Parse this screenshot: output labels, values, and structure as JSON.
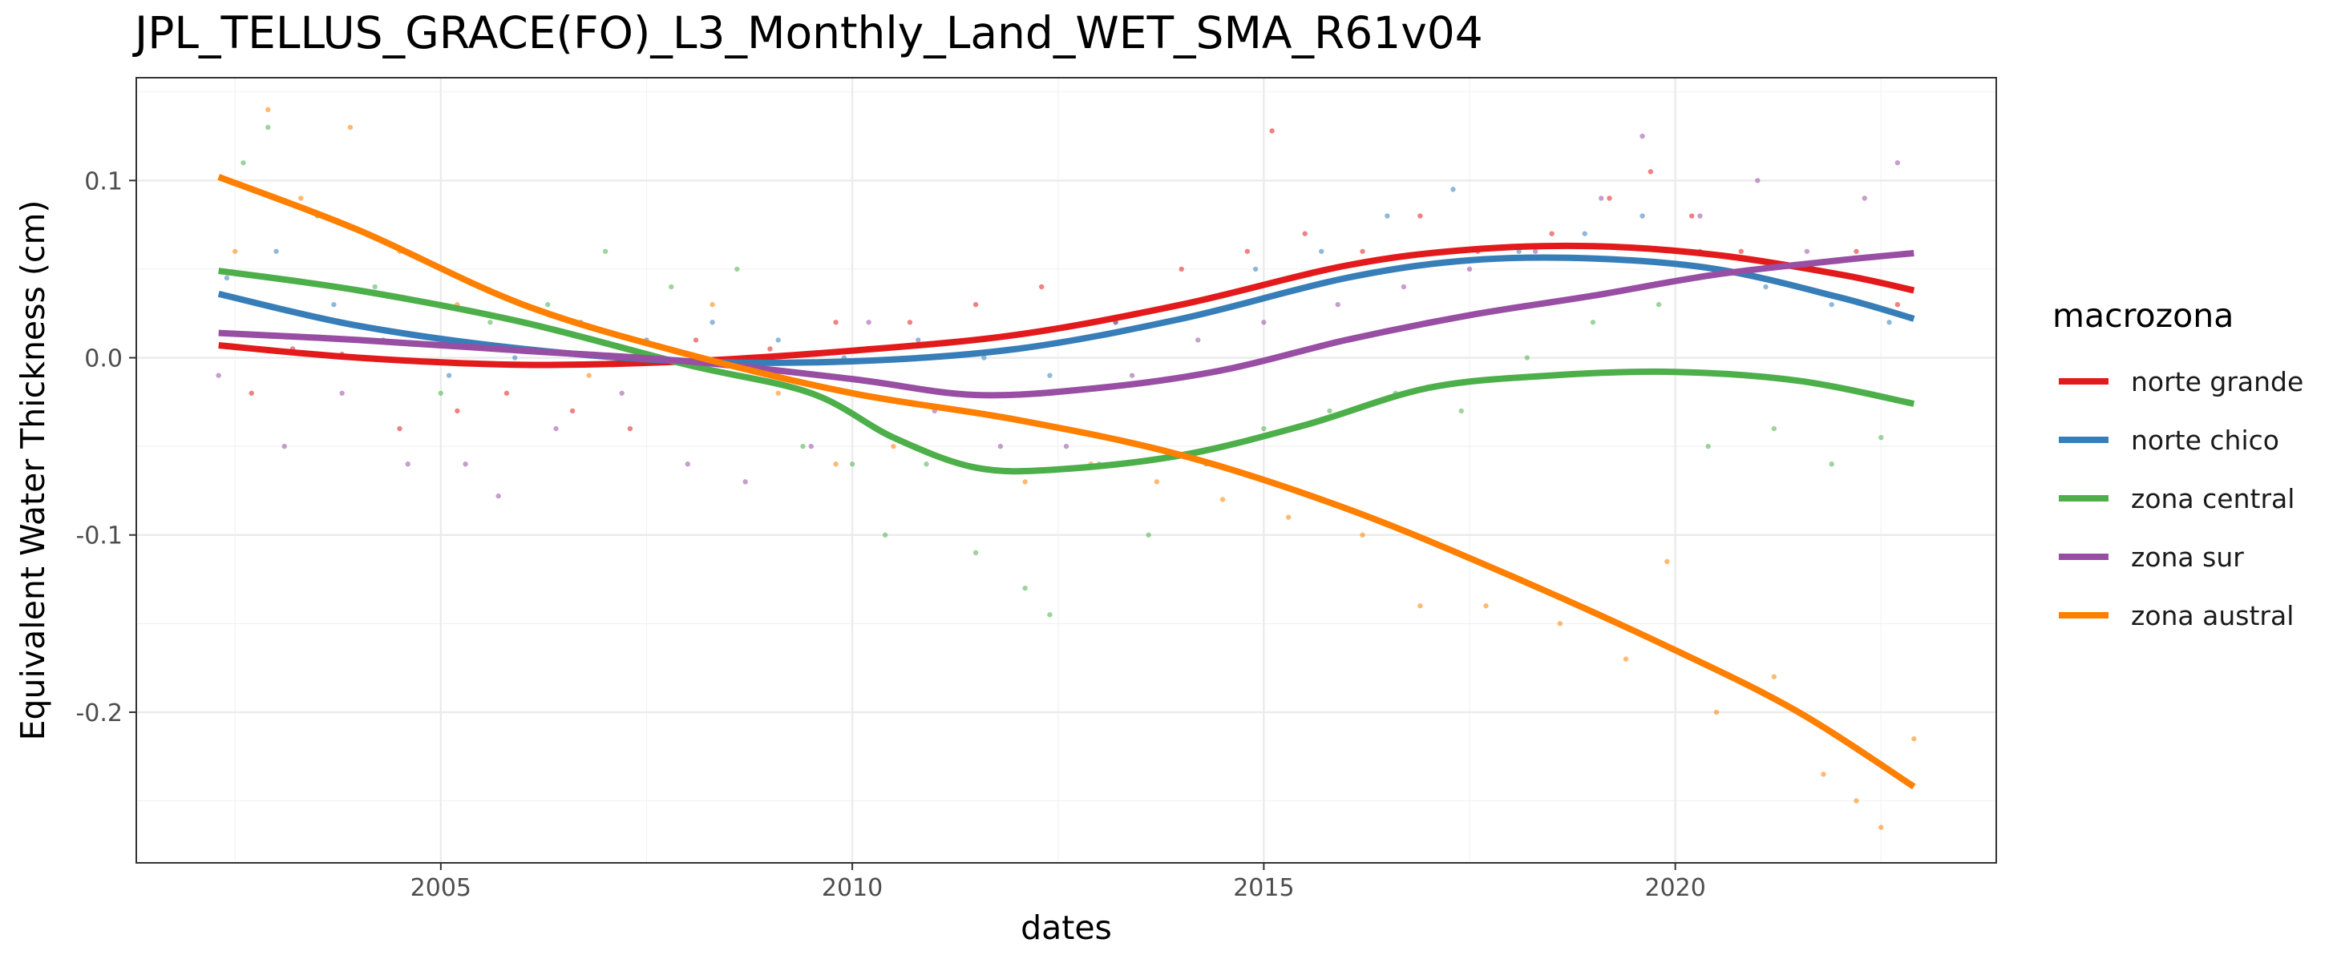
{
  "chart_data": {
    "type": "scatter",
    "title": "JPL_TELLUS_GRACE(FO)_L3_Monthly_Land_WET_SMA_R61v04",
    "xlabel": "dates",
    "ylabel": "Equivalent Water Thickness (cm)",
    "xlim": [
      2001.3,
      2023.9
    ],
    "ylim": [
      -0.285,
      0.158
    ],
    "x_ticks": [
      2005,
      2010,
      2015,
      2020
    ],
    "x_tick_labels": [
      "2005",
      "2010",
      "2015",
      "2020"
    ],
    "y_ticks": [
      -0.2,
      -0.1,
      0.0,
      0.1
    ],
    "y_tick_labels": [
      "-0.2",
      "-0.1",
      "0.0",
      "0.1"
    ],
    "grid": true,
    "legend": {
      "title": "macrozona",
      "position": "right"
    },
    "point_opacity": 0.55,
    "series": [
      {
        "name": "norte grande",
        "color": "#e31a1c",
        "trend": [
          [
            2002.3,
            0.007
          ],
          [
            2004,
            0.0
          ],
          [
            2006,
            -0.004
          ],
          [
            2008,
            -0.002
          ],
          [
            2010,
            0.004
          ],
          [
            2012,
            0.013
          ],
          [
            2014,
            0.03
          ],
          [
            2016,
            0.052
          ],
          [
            2017.5,
            0.061
          ],
          [
            2019,
            0.063
          ],
          [
            2020.5,
            0.058
          ],
          [
            2022,
            0.047
          ],
          [
            2022.9,
            0.038
          ]
        ],
        "points": [
          [
            2002.4,
            0.035
          ],
          [
            2002.7,
            -0.02
          ],
          [
            2003.2,
            0.005
          ],
          [
            2003.8,
            0.002
          ],
          [
            2004.5,
            -0.04
          ],
          [
            2005.2,
            -0.03
          ],
          [
            2005.8,
            -0.02
          ],
          [
            2006.6,
            -0.03
          ],
          [
            2007.3,
            -0.04
          ],
          [
            2008.1,
            0.01
          ],
          [
            2009.0,
            0.005
          ],
          [
            2009.8,
            0.02
          ],
          [
            2010.7,
            0.02
          ],
          [
            2011.5,
            0.03
          ],
          [
            2012.3,
            0.04
          ],
          [
            2013.2,
            0.02
          ],
          [
            2014.0,
            0.05
          ],
          [
            2014.8,
            0.06
          ],
          [
            2015.1,
            0.128
          ],
          [
            2015.5,
            0.07
          ],
          [
            2016.2,
            0.06
          ],
          [
            2016.9,
            0.08
          ],
          [
            2017.6,
            0.06
          ],
          [
            2018.5,
            0.07
          ],
          [
            2019.2,
            0.09
          ],
          [
            2019.7,
            0.105
          ],
          [
            2020.2,
            0.08
          ],
          [
            2020.8,
            0.06
          ],
          [
            2021.5,
            0.04
          ],
          [
            2022.2,
            0.06
          ],
          [
            2022.7,
            0.03
          ]
        ]
      },
      {
        "name": "norte chico",
        "color": "#377eb8",
        "trend": [
          [
            2002.3,
            0.036
          ],
          [
            2004,
            0.018
          ],
          [
            2006,
            0.005
          ],
          [
            2008,
            -0.002
          ],
          [
            2010,
            -0.002
          ],
          [
            2012,
            0.005
          ],
          [
            2014,
            0.022
          ],
          [
            2016,
            0.045
          ],
          [
            2017.5,
            0.055
          ],
          [
            2019,
            0.056
          ],
          [
            2020.5,
            0.05
          ],
          [
            2022,
            0.034
          ],
          [
            2022.9,
            0.022
          ]
        ],
        "points": [
          [
            2002.4,
            0.045
          ],
          [
            2003.0,
            0.06
          ],
          [
            2003.7,
            0.03
          ],
          [
            2004.3,
            0.01
          ],
          [
            2005.1,
            -0.01
          ],
          [
            2005.9,
            0.0
          ],
          [
            2006.7,
            0.02
          ],
          [
            2007.5,
            0.01
          ],
          [
            2008.3,
            0.02
          ],
          [
            2009.1,
            0.01
          ],
          [
            2009.9,
            0.0
          ],
          [
            2010.8,
            0.01
          ],
          [
            2011.6,
            0.0
          ],
          [
            2012.4,
            -0.01
          ],
          [
            2013.2,
            0.02
          ],
          [
            2014.0,
            0.03
          ],
          [
            2014.9,
            0.05
          ],
          [
            2015.7,
            0.06
          ],
          [
            2016.5,
            0.08
          ],
          [
            2017.3,
            0.095
          ],
          [
            2018.1,
            0.06
          ],
          [
            2018.9,
            0.07
          ],
          [
            2019.6,
            0.08
          ],
          [
            2020.3,
            0.06
          ],
          [
            2021.1,
            0.04
          ],
          [
            2021.9,
            0.03
          ],
          [
            2022.6,
            0.02
          ]
        ]
      },
      {
        "name": "zona central",
        "color": "#4daf4a",
        "trend": [
          [
            2002.3,
            0.049
          ],
          [
            2004,
            0.038
          ],
          [
            2006,
            0.02
          ],
          [
            2008,
            -0.004
          ],
          [
            2009.5,
            -0.02
          ],
          [
            2010.5,
            -0.045
          ],
          [
            2011.5,
            -0.062
          ],
          [
            2012.5,
            -0.063
          ],
          [
            2014,
            -0.055
          ],
          [
            2015.5,
            -0.038
          ],
          [
            2017,
            -0.017
          ],
          [
            2018.5,
            -0.01
          ],
          [
            2020,
            -0.008
          ],
          [
            2021.5,
            -0.013
          ],
          [
            2022.9,
            -0.026
          ]
        ],
        "points": [
          [
            2002.6,
            0.11
          ],
          [
            2002.9,
            0.13
          ],
          [
            2003.5,
            0.08
          ],
          [
            2004.2,
            0.04
          ],
          [
            2005.0,
            -0.02
          ],
          [
            2005.6,
            0.02
          ],
          [
            2006.3,
            0.03
          ],
          [
            2007.0,
            0.06
          ],
          [
            2007.8,
            0.04
          ],
          [
            2008.6,
            0.05
          ],
          [
            2009.4,
            -0.05
          ],
          [
            2010.0,
            -0.06
          ],
          [
            2010.4,
            -0.1
          ],
          [
            2010.9,
            -0.06
          ],
          [
            2011.5,
            -0.11
          ],
          [
            2012.1,
            -0.13
          ],
          [
            2012.4,
            -0.145
          ],
          [
            2013.0,
            -0.06
          ],
          [
            2013.6,
            -0.1
          ],
          [
            2014.3,
            -0.06
          ],
          [
            2015.0,
            -0.04
          ],
          [
            2015.8,
            -0.03
          ],
          [
            2016.6,
            -0.02
          ],
          [
            2017.4,
            -0.03
          ],
          [
            2018.2,
            0.0
          ],
          [
            2019.0,
            0.02
          ],
          [
            2019.8,
            0.03
          ],
          [
            2020.4,
            -0.05
          ],
          [
            2021.2,
            -0.04
          ],
          [
            2021.9,
            -0.06
          ],
          [
            2022.5,
            -0.045
          ]
        ]
      },
      {
        "name": "zona sur",
        "color": "#984ea3",
        "trend": [
          [
            2002.3,
            0.014
          ],
          [
            2004,
            0.01
          ],
          [
            2006,
            0.004
          ],
          [
            2008,
            -0.002
          ],
          [
            2010,
            -0.012
          ],
          [
            2011.5,
            -0.021
          ],
          [
            2013,
            -0.017
          ],
          [
            2014.5,
            -0.007
          ],
          [
            2016,
            0.01
          ],
          [
            2017.5,
            0.024
          ],
          [
            2019,
            0.035
          ],
          [
            2020.5,
            0.047
          ],
          [
            2022,
            0.055
          ],
          [
            2022.9,
            0.059
          ]
        ],
        "points": [
          [
            2002.3,
            -0.01
          ],
          [
            2003.1,
            -0.05
          ],
          [
            2003.8,
            -0.02
          ],
          [
            2004.6,
            -0.06
          ],
          [
            2005.3,
            -0.06
          ],
          [
            2005.7,
            -0.078
          ],
          [
            2006.4,
            -0.04
          ],
          [
            2007.2,
            -0.02
          ],
          [
            2008.0,
            -0.06
          ],
          [
            2008.7,
            -0.07
          ],
          [
            2009.5,
            -0.05
          ],
          [
            2010.2,
            0.02
          ],
          [
            2011.0,
            -0.03
          ],
          [
            2011.8,
            -0.05
          ],
          [
            2012.6,
            -0.05
          ],
          [
            2013.4,
            -0.01
          ],
          [
            2014.2,
            0.01
          ],
          [
            2015.0,
            0.02
          ],
          [
            2015.9,
            0.03
          ],
          [
            2016.7,
            0.04
          ],
          [
            2017.5,
            0.05
          ],
          [
            2018.3,
            0.06
          ],
          [
            2019.1,
            0.09
          ],
          [
            2019.6,
            0.125
          ],
          [
            2020.3,
            0.08
          ],
          [
            2021.0,
            0.1
          ],
          [
            2021.6,
            0.06
          ],
          [
            2022.3,
            0.09
          ],
          [
            2022.7,
            0.11
          ]
        ]
      },
      {
        "name": "zona austral",
        "color": "#ff7f00",
        "trend": [
          [
            2002.3,
            0.102
          ],
          [
            2004,
            0.072
          ],
          [
            2006,
            0.03
          ],
          [
            2008,
            0.002
          ],
          [
            2010,
            -0.02
          ],
          [
            2012,
            -0.035
          ],
          [
            2014,
            -0.055
          ],
          [
            2016,
            -0.085
          ],
          [
            2018,
            -0.123
          ],
          [
            2020,
            -0.165
          ],
          [
            2021.5,
            -0.2
          ],
          [
            2022.9,
            -0.242
          ]
        ],
        "points": [
          [
            2002.5,
            0.06
          ],
          [
            2002.9,
            0.14
          ],
          [
            2003.3,
            0.09
          ],
          [
            2003.9,
            0.13
          ],
          [
            2004.5,
            0.06
          ],
          [
            2005.2,
            0.03
          ],
          [
            2006.0,
            0.02
          ],
          [
            2006.8,
            -0.01
          ],
          [
            2007.6,
            0.0
          ],
          [
            2008.3,
            0.03
          ],
          [
            2009.1,
            -0.02
          ],
          [
            2009.8,
            -0.06
          ],
          [
            2010.5,
            -0.05
          ],
          [
            2011.3,
            -0.06
          ],
          [
            2012.1,
            -0.07
          ],
          [
            2012.9,
            -0.06
          ],
          [
            2013.7,
            -0.07
          ],
          [
            2014.5,
            -0.08
          ],
          [
            2015.3,
            -0.09
          ],
          [
            2016.2,
            -0.1
          ],
          [
            2016.9,
            -0.14
          ],
          [
            2017.7,
            -0.14
          ],
          [
            2018.6,
            -0.15
          ],
          [
            2019.4,
            -0.17
          ],
          [
            2019.9,
            -0.115
          ],
          [
            2020.5,
            -0.2
          ],
          [
            2021.2,
            -0.18
          ],
          [
            2021.8,
            -0.235
          ],
          [
            2022.2,
            -0.25
          ],
          [
            2022.5,
            -0.265
          ],
          [
            2022.9,
            -0.215
          ]
        ]
      }
    ]
  }
}
